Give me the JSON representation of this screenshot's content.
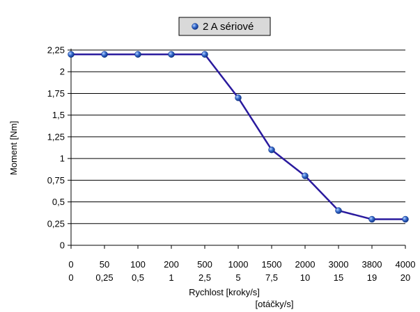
{
  "chart_data": {
    "type": "line",
    "title": "",
    "x_tick_labels": [
      [
        "0",
        "0"
      ],
      [
        "50",
        "0,25"
      ],
      [
        "100",
        "0,5"
      ],
      [
        "200",
        "1"
      ],
      [
        "500",
        "2,5"
      ],
      [
        "1000",
        "5"
      ],
      [
        "1500",
        "7,5"
      ],
      [
        "2000",
        "10"
      ],
      [
        "3000",
        "15"
      ],
      [
        "3800",
        "19"
      ],
      [
        "4000",
        "20"
      ]
    ],
    "xlabel": "Rychlost [kroky/s]",
    "xlabel2": "[otáčky/s]",
    "ylabel": "Moment [Nm]",
    "ylim": [
      0,
      2.25
    ],
    "y_ticks": [
      "0",
      "0,25",
      "0,5",
      "0,75",
      "1",
      "1,25",
      "1,5",
      "1,75",
      "2",
      "2,25"
    ],
    "grid": "horizontal",
    "legend_position": "top-center",
    "series": [
      {
        "name": "2 A sériové",
        "color": "#2a1a9e",
        "marker_color": "#3a6fd0",
        "values": [
          2.2,
          2.2,
          2.2,
          2.2,
          2.2,
          1.7,
          1.1,
          0.8,
          0.4,
          0.3,
          0.3
        ]
      }
    ]
  }
}
